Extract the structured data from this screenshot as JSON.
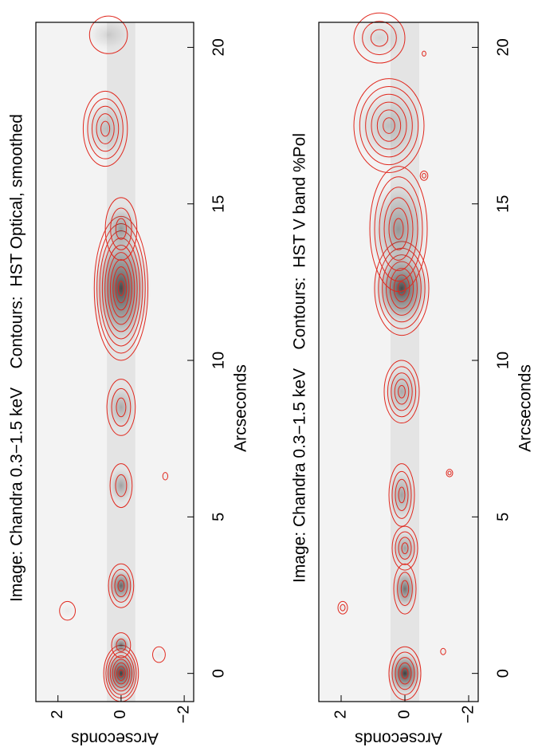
{
  "chart_data": [
    {
      "type": "image-contour",
      "title": "Image: Chandra 0.3−1.5 keV    Contours:  HST Optical, smoothed",
      "xlabel": "Arcseconds",
      "ylabel": "Arcseconds",
      "xlim": [
        -0.9,
        20.8
      ],
      "ylim": [
        -2.3,
        2.7
      ],
      "xticks": [
        0,
        5,
        10,
        15,
        20
      ],
      "yticks": [
        {
          "value": -2,
          "label": "−2"
        },
        0,
        2
      ],
      "contour_color": "#e0281e",
      "knots": [
        {
          "x": 0,
          "y": 0,
          "rx": 0.9,
          "ry": 0.55,
          "levels": 8,
          "brightness": 0.85
        },
        {
          "x": 0.9,
          "y": 0,
          "rx": 0.4,
          "ry": 0.3,
          "levels": 2,
          "brightness": 0.6
        },
        {
          "x": 2.8,
          "y": 0,
          "rx": 0.7,
          "ry": 0.4,
          "levels": 4,
          "brightness": 0.65
        },
        {
          "x": 6.0,
          "y": 0,
          "rx": 0.7,
          "ry": 0.35,
          "levels": 2,
          "brightness": 0.35
        },
        {
          "x": 8.5,
          "y": 0,
          "rx": 0.9,
          "ry": 0.45,
          "levels": 3,
          "brightness": 0.3
        },
        {
          "x": 12.3,
          "y": 0,
          "rx": 2.3,
          "ry": 0.85,
          "levels": 10,
          "brightness": 0.8
        },
        {
          "x": 14.2,
          "y": 0,
          "rx": 1.0,
          "ry": 0.5,
          "levels": 3,
          "brightness": 0.4
        },
        {
          "x": 17.4,
          "y": 0.5,
          "rx": 1.2,
          "ry": 0.7,
          "levels": 5,
          "brightness": 0.25
        },
        {
          "x": 20.4,
          "y": 0.4,
          "rx": 0.6,
          "ry": 0.6,
          "levels": 1,
          "brightness": 0.15
        },
        {
          "x": 2.0,
          "y": 1.7,
          "rx": 0.3,
          "ry": 0.25,
          "levels": 1,
          "brightness": 0.05
        },
        {
          "x": 6.3,
          "y": -1.4,
          "rx": 0.12,
          "ry": 0.08,
          "levels": 1,
          "brightness": 0.05
        },
        {
          "x": 0.6,
          "y": -1.2,
          "rx": 0.25,
          "ry": 0.2,
          "levels": 1,
          "brightness": 0.05
        }
      ]
    },
    {
      "type": "image-contour",
      "title": "Image: Chandra 0.3−1.5 keV    Contours:  HST V band %Pol",
      "xlabel": "Arcseconds",
      "ylabel": "Arcseconds",
      "xlim": [
        -0.9,
        20.8
      ],
      "ylim": [
        -2.3,
        2.7
      ],
      "xticks": [
        0,
        5,
        10,
        15,
        20
      ],
      "yticks": [
        {
          "value": -2,
          "label": "−2"
        },
        0,
        2
      ],
      "contour_color": "#e0281e",
      "knots": [
        {
          "x": 0,
          "y": 0,
          "rx": 0.85,
          "ry": 0.5,
          "levels": 5,
          "brightness": 0.85
        },
        {
          "x": 2.7,
          "y": 0,
          "rx": 0.8,
          "ry": 0.35,
          "levels": 3,
          "brightness": 0.6
        },
        {
          "x": 4.0,
          "y": 0,
          "rx": 0.7,
          "ry": 0.4,
          "levels": 4,
          "brightness": 0.35
        },
        {
          "x": 5.7,
          "y": 0.1,
          "rx": 1.0,
          "ry": 0.4,
          "levels": 4,
          "brightness": 0.35
        },
        {
          "x": 9.0,
          "y": 0.1,
          "rx": 1.0,
          "ry": 0.55,
          "levels": 5,
          "brightness": 0.3
        },
        {
          "x": 12.3,
          "y": 0.1,
          "rx": 1.5,
          "ry": 0.85,
          "levels": 7,
          "brightness": 0.8
        },
        {
          "x": 14.2,
          "y": 0.2,
          "rx": 2.0,
          "ry": 0.9,
          "levels": 6,
          "brightness": 0.4
        },
        {
          "x": 17.5,
          "y": 0.5,
          "rx": 1.5,
          "ry": 1.1,
          "levels": 6,
          "brightness": 0.25
        },
        {
          "x": 20.3,
          "y": 0.8,
          "rx": 0.8,
          "ry": 0.8,
          "levels": 3,
          "brightness": 0.15
        },
        {
          "x": 2.1,
          "y": 1.95,
          "rx": 0.2,
          "ry": 0.15,
          "levels": 2,
          "brightness": 0.05
        },
        {
          "x": 6.4,
          "y": -1.4,
          "rx": 0.12,
          "ry": 0.1,
          "levels": 2,
          "brightness": 0.05
        },
        {
          "x": 15.9,
          "y": -0.6,
          "rx": 0.15,
          "ry": 0.12,
          "levels": 2,
          "brightness": 0.05
        },
        {
          "x": 0.7,
          "y": -1.2,
          "rx": 0.1,
          "ry": 0.08,
          "levels": 1,
          "brightness": 0.05
        },
        {
          "x": 19.8,
          "y": -0.6,
          "rx": 0.08,
          "ry": 0.06,
          "levels": 1,
          "brightness": 0.05
        }
      ]
    }
  ]
}
